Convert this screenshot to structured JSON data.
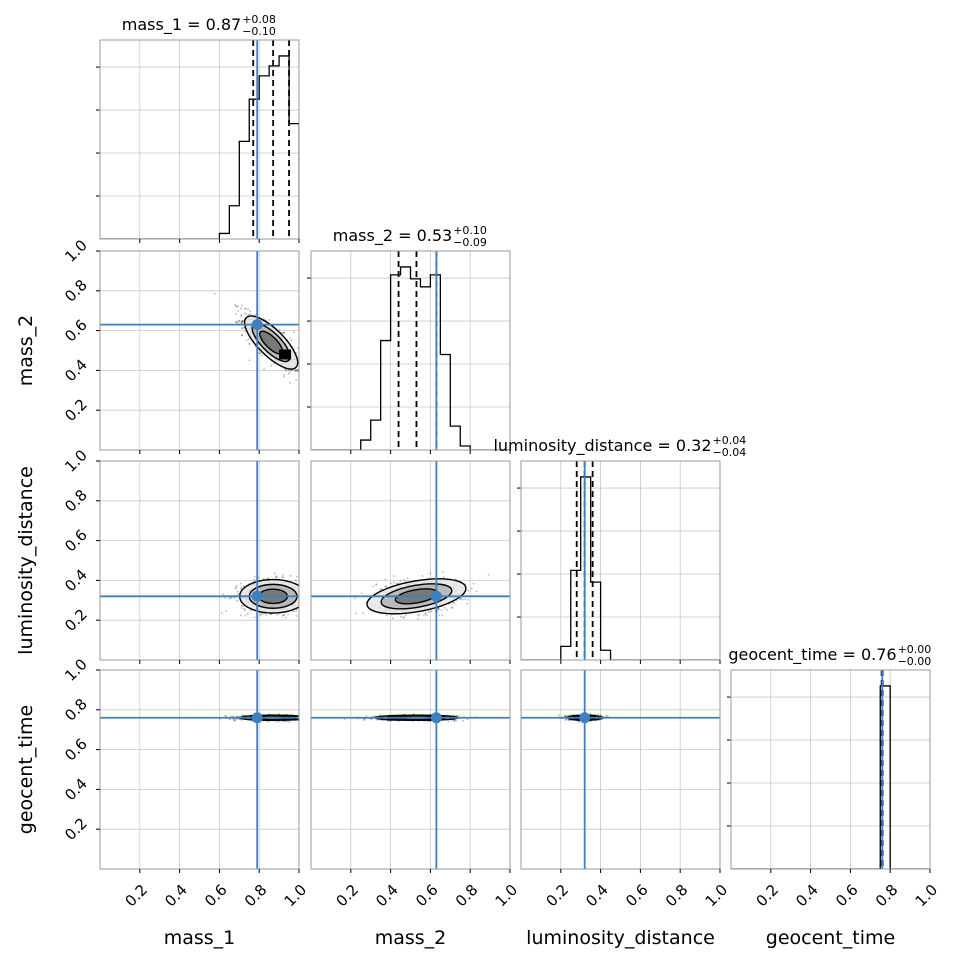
{
  "chart_data": {
    "type": "corner",
    "parameters": [
      "mass_1",
      "mass_2",
      "luminosity_distance",
      "geocent_time"
    ],
    "axis_range": [
      0,
      1
    ],
    "tick_values": [
      0.2,
      0.4,
      0.6,
      0.8,
      1.0
    ],
    "tick_labels": [
      "0.2",
      "0.4",
      "0.6",
      "0.8",
      "1.0"
    ],
    "grid": true,
    "colors": {
      "truth": "#3f7fbf",
      "histogram": "#000000",
      "histogram_light": "#888888",
      "grid": "#c8c8c8",
      "frame": "#9a9a9a"
    },
    "truths": {
      "mass_1": 0.79,
      "mass_2": 0.63,
      "luminosity_distance": 0.32,
      "geocent_time": 0.76
    },
    "titles": [
      {
        "param": "mass_1",
        "prefix": "mass_1 = 0.87",
        "plus": "+0.08",
        "minus": "−0.10"
      },
      {
        "param": "mass_2",
        "prefix": "mass_2 = 0.53",
        "plus": "+0.10",
        "minus": "−0.09"
      },
      {
        "param": "luminosity_distance",
        "prefix": "luminosity_distance = 0.32",
        "plus": "+0.04",
        "minus": "−0.04"
      },
      {
        "param": "geocent_time",
        "prefix": "geocent_time = 0.76",
        "plus": "+0.00",
        "minus": "−0.00"
      }
    ],
    "quantiles": {
      "mass_1": [
        0.77,
        0.87,
        0.95
      ],
      "mass_2": [
        0.44,
        0.53,
        0.63
      ],
      "luminosity_distance": [
        0.28,
        0.32,
        0.36
      ],
      "geocent_time": [
        0.757,
        0.76,
        0.762
      ]
    },
    "histograms": {
      "mass_1": {
        "bin_width": 0.05,
        "bins_start": [
          0.6,
          0.65,
          0.7,
          0.75,
          0.8,
          0.85,
          0.9,
          0.95
        ],
        "values": [
          0.5,
          3.0,
          8.8,
          12.6,
          14.7,
          15.6,
          16.5,
          10.4
        ]
      },
      "mass_2": {
        "bin_width": 0.05,
        "bins_start": [
          0.25,
          0.3,
          0.35,
          0.4,
          0.45,
          0.5,
          0.55,
          0.6,
          0.65,
          0.7,
          0.75
        ],
        "values": [
          0.5,
          1.5,
          5.5,
          8.8,
          9.2,
          8.6,
          8.2,
          8.8,
          4.8,
          1.2,
          0.2
        ]
      },
      "luminosity_distance": {
        "bin_width": 0.05,
        "bins_start": [
          0.2,
          0.25,
          0.3,
          0.35,
          0.4
        ],
        "values": [
          0.7,
          4.6,
          9.4,
          4.0,
          0.5
        ]
      },
      "geocent_time": {
        "bin_width": 0.05,
        "bins_start": [
          0.75
        ],
        "values": [
          40.0
        ]
      }
    },
    "panels_2d": [
      {
        "x": "mass_1",
        "y": "mass_2",
        "center": [
          0.86,
          0.54
        ],
        "spread": [
          0.07,
          0.07
        ],
        "rho": -0.8,
        "peak": [
          0.93,
          0.48
        ]
      },
      {
        "x": "mass_1",
        "y": "luminosity_distance",
        "center": [
          0.87,
          0.32
        ],
        "spread": [
          0.08,
          0.04
        ],
        "rho": 0.0
      },
      {
        "x": "mass_2",
        "y": "luminosity_distance",
        "center": [
          0.53,
          0.32
        ],
        "spread": [
          0.1,
          0.04
        ],
        "rho": 0.15
      },
      {
        "x": "mass_1",
        "y": "geocent_time",
        "center": [
          0.87,
          0.76
        ],
        "spread": [
          0.08,
          0.006
        ],
        "rho": 0.0
      },
      {
        "x": "mass_2",
        "y": "geocent_time",
        "center": [
          0.53,
          0.76
        ],
        "spread": [
          0.1,
          0.006
        ],
        "rho": 0.0
      },
      {
        "x": "luminosity_distance",
        "y": "geocent_time",
        "center": [
          0.32,
          0.76
        ],
        "spread": [
          0.04,
          0.006
        ],
        "rho": 0.0
      }
    ]
  }
}
